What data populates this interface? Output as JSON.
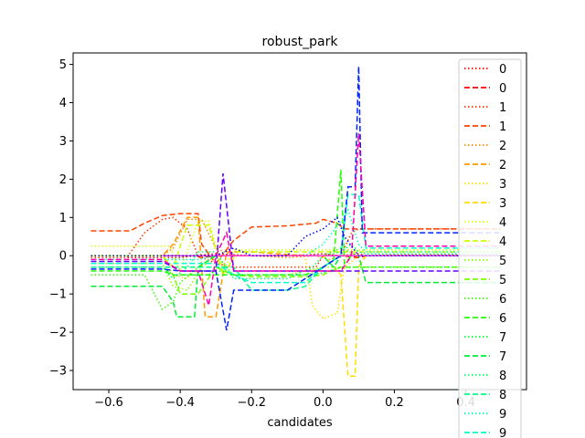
{
  "chart_data": {
    "type": "line",
    "title": "robust_park",
    "xlabel": "candidates",
    "ylabel": "",
    "xlim": [
      -0.7,
      0.57
    ],
    "ylim": [
      -3.5,
      5.3
    ],
    "xticks": [
      -0.6,
      -0.4,
      -0.2,
      0.0,
      0.2,
      0.4
    ],
    "xtick_labels": [
      "−0.6",
      "−0.4",
      "−0.2",
      "0.0",
      "0.2",
      "0.4"
    ],
    "yticks": [
      -3,
      -2,
      -1,
      0,
      1,
      2,
      3,
      4,
      5
    ],
    "ytick_labels": [
      "−3",
      "−2",
      "−1",
      "0",
      "1",
      "2",
      "3",
      "4",
      "5"
    ],
    "grid": false,
    "legend_position": "top-right",
    "series": [
      {
        "name": "0",
        "color": "#ff0000",
        "dash": "dotted",
        "x": [
          -0.65,
          -0.45,
          -0.4,
          -0.36,
          -0.3,
          -0.2,
          -0.05,
          0.0,
          0.05,
          0.1,
          0.12,
          0.2,
          0.4,
          0.5
        ],
        "y": [
          -0.05,
          -0.05,
          -0.05,
          0.0,
          0.05,
          0.0,
          0.02,
          0.05,
          0.0,
          0.05,
          0.0,
          0.02,
          0.02,
          0.02
        ]
      },
      {
        "name": "0",
        "color": "#ff0000",
        "dash": "dashed",
        "x": [
          -0.65,
          -0.45,
          -0.36,
          -0.34,
          -0.3,
          -0.1,
          0.0,
          0.05,
          0.1,
          0.12,
          0.5
        ],
        "y": [
          0.0,
          0.0,
          0.0,
          -0.05,
          0.0,
          0.0,
          0.0,
          0.0,
          -0.05,
          0.0,
          0.0
        ]
      },
      {
        "name": "1",
        "color": "#ff3300",
        "dash": "dotted",
        "x": [
          -0.65,
          -0.55,
          -0.5,
          -0.45,
          -0.42,
          -0.38,
          -0.35,
          -0.3,
          -0.25,
          -0.2,
          -0.1,
          -0.02,
          0.0,
          0.05,
          0.08,
          0.1,
          0.12,
          0.2,
          0.3,
          0.5
        ],
        "y": [
          -0.05,
          -0.05,
          0.6,
          0.95,
          1.0,
          0.7,
          0.0,
          -0.2,
          -0.3,
          -0.3,
          -0.3,
          -0.3,
          0.0,
          0.0,
          0.6,
          0.7,
          0.7,
          0.7,
          0.7,
          0.7
        ]
      },
      {
        "name": "1",
        "color": "#ff4400",
        "dash": "dashed",
        "x": [
          -0.65,
          -0.54,
          -0.5,
          -0.45,
          -0.4,
          -0.35,
          -0.34,
          -0.3,
          -0.25,
          -0.2,
          -0.1,
          -0.02,
          0.0,
          0.04,
          0.06,
          0.1,
          0.12,
          0.5
        ],
        "y": [
          0.65,
          0.65,
          0.85,
          1.05,
          1.1,
          1.1,
          0.3,
          -0.2,
          0.4,
          0.75,
          0.78,
          0.85,
          0.95,
          0.85,
          0.7,
          0.7,
          0.7,
          0.7
        ]
      },
      {
        "name": "2",
        "color": "#ff8800",
        "dash": "dotted",
        "x": [
          -0.65,
          -0.45,
          -0.42,
          -0.38,
          -0.34,
          -0.3,
          -0.25,
          -0.2,
          -0.1,
          -0.02,
          0.02,
          0.06,
          0.1,
          0.5
        ],
        "y": [
          0.0,
          0.0,
          0.2,
          0.95,
          0.95,
          0.2,
          0.0,
          0.0,
          -0.05,
          0.0,
          -0.1,
          0.0,
          0.0,
          0.0
        ]
      },
      {
        "name": "2",
        "color": "#ff9900",
        "dash": "dashed",
        "x": [
          -0.65,
          -0.45,
          -0.42,
          -0.38,
          -0.35,
          -0.33,
          -0.3,
          -0.27,
          -0.2,
          -0.05,
          0.0,
          0.06,
          0.1,
          0.5
        ],
        "y": [
          0.0,
          0.0,
          0.3,
          1.0,
          1.0,
          -1.6,
          -1.6,
          0.1,
          0.1,
          0.0,
          0.0,
          0.0,
          0.0,
          0.0
        ]
      },
      {
        "name": "3",
        "color": "#ffdd00",
        "dash": "dotted",
        "x": [
          -0.65,
          -0.45,
          -0.42,
          -0.38,
          -0.35,
          -0.3,
          -0.2,
          -0.05,
          -0.03,
          0.0,
          0.04,
          0.06,
          0.1,
          0.5
        ],
        "y": [
          0.0,
          0.0,
          -0.5,
          -0.6,
          -0.3,
          0.0,
          0.0,
          0.0,
          -1.3,
          -1.65,
          -1.5,
          -0.3,
          0.0,
          0.0
        ]
      },
      {
        "name": "3",
        "color": "#ffdd00",
        "dash": "dashed",
        "x": [
          -0.65,
          -0.45,
          -0.4,
          -0.35,
          -0.3,
          -0.2,
          -0.05,
          0.0,
          0.05,
          0.07,
          0.09,
          0.1,
          0.12,
          0.5
        ],
        "y": [
          0.0,
          0.0,
          0.0,
          0.0,
          0.0,
          0.0,
          0.0,
          0.0,
          -0.5,
          -3.15,
          -3.15,
          -0.3,
          0.0,
          0.0
        ]
      },
      {
        "name": "4",
        "color": "#ddff00",
        "dash": "dotted",
        "x": [
          -0.65,
          -0.45,
          -0.43,
          -0.4,
          -0.35,
          -0.32,
          -0.28,
          -0.25,
          -0.2,
          -0.1,
          -0.02,
          0.02,
          0.06,
          0.1,
          0.12,
          0.5
        ],
        "y": [
          0.25,
          0.25,
          0.25,
          -0.4,
          0.9,
          0.9,
          -0.4,
          0.15,
          0.15,
          0.15,
          0.15,
          0.15,
          0.15,
          0.15,
          0.15,
          0.15
        ]
      },
      {
        "name": "4",
        "color": "#ccff00",
        "dash": "dashed",
        "x": [
          -0.65,
          -0.45,
          -0.42,
          -0.38,
          -0.35,
          -0.32,
          -0.28,
          -0.24,
          -0.2,
          -0.1,
          0.0,
          0.05,
          0.08,
          0.1,
          0.12,
          0.5
        ],
        "y": [
          0.0,
          0.0,
          -0.3,
          0.8,
          0.8,
          0.8,
          -0.5,
          0.1,
          0.1,
          0.1,
          0.1,
          0.1,
          0.1,
          0.1,
          0.1,
          0.1
        ]
      },
      {
        "name": "5",
        "color": "#88ff00",
        "dash": "dotted",
        "x": [
          -0.65,
          -0.45,
          -0.42,
          -0.38,
          -0.34,
          -0.3,
          -0.25,
          -0.2,
          -0.1,
          0.0,
          0.05,
          0.1,
          0.12,
          0.5
        ],
        "y": [
          -0.2,
          -0.2,
          -0.8,
          -0.9,
          -0.3,
          0.0,
          -0.5,
          -0.5,
          -0.5,
          -0.3,
          -0.3,
          -0.3,
          -0.3,
          -0.3
        ]
      },
      {
        "name": "5",
        "color": "#77ff00",
        "dash": "dashed",
        "x": [
          -0.65,
          -0.45,
          -0.42,
          -0.4,
          -0.35,
          -0.3,
          -0.25,
          -0.2,
          -0.05,
          0.0,
          0.05,
          0.1,
          0.12,
          0.5
        ],
        "y": [
          -0.3,
          -0.3,
          -0.5,
          -1.0,
          -1.0,
          -0.3,
          -0.5,
          -0.55,
          -0.55,
          -0.5,
          -0.3,
          -0.3,
          -0.3,
          -0.3
        ]
      },
      {
        "name": "6",
        "color": "#33ff00",
        "dash": "dotted",
        "x": [
          -0.65,
          -0.5,
          -0.45,
          -0.42,
          -0.4,
          -0.35,
          -0.3,
          -0.25,
          -0.2,
          -0.05,
          0.0,
          0.05,
          0.1,
          0.12,
          0.5
        ],
        "y": [
          -0.5,
          -0.5,
          -1.4,
          -1.2,
          -0.7,
          -0.3,
          0.0,
          0.0,
          0.0,
          0.0,
          0.0,
          0.2,
          0.0,
          0.0,
          0.0
        ]
      },
      {
        "name": "6",
        "color": "#22ff00",
        "dash": "dashed",
        "x": [
          -0.65,
          -0.45,
          -0.42,
          -0.4,
          -0.38,
          -0.35,
          -0.3,
          -0.25,
          -0.2,
          -0.05,
          0.0,
          0.03,
          0.05,
          0.06,
          0.08,
          0.1,
          0.12,
          0.5
        ],
        "y": [
          -0.4,
          -0.4,
          -0.5,
          -0.5,
          -0.5,
          -0.5,
          -0.5,
          -0.5,
          -0.5,
          -0.5,
          -0.3,
          -0.1,
          2.25,
          -0.2,
          0.0,
          0.0,
          0.0,
          0.0
        ]
      },
      {
        "name": "7",
        "color": "#00ff22",
        "dash": "dotted",
        "x": [
          -0.65,
          -0.45,
          -0.42,
          -0.4,
          -0.38,
          -0.35,
          -0.32,
          -0.3,
          -0.28,
          -0.25,
          -0.2,
          -0.05,
          0.0,
          0.05,
          0.08,
          0.1,
          0.5
        ],
        "y": [
          -0.3,
          -0.3,
          -0.5,
          -0.5,
          -0.5,
          -0.5,
          -0.5,
          -0.4,
          -0.4,
          -0.5,
          -0.5,
          -0.5,
          -0.45,
          -0.3,
          -0.3,
          -0.3,
          -0.3
        ]
      },
      {
        "name": "7",
        "color": "#00ee33",
        "dash": "dashed",
        "x": [
          -0.65,
          -0.45,
          -0.42,
          -0.41,
          -0.36,
          -0.35,
          -0.3,
          -0.25,
          -0.2,
          -0.1,
          0.0,
          0.03,
          0.05,
          0.08,
          0.1,
          0.12,
          0.5
        ],
        "y": [
          -0.8,
          -0.8,
          -1.2,
          -1.6,
          -1.6,
          -0.3,
          0.0,
          0.0,
          0.0,
          0.0,
          0.0,
          -0.3,
          0.0,
          0.0,
          0.0,
          -0.7,
          -0.7
        ]
      },
      {
        "name": "8",
        "color": "#00ff66",
        "dash": "dotted",
        "x": [
          -0.65,
          -0.45,
          -0.42,
          -0.38,
          -0.35,
          -0.3,
          -0.25,
          -0.2,
          -0.1,
          -0.03,
          0.0,
          0.05,
          0.08,
          0.1,
          0.12,
          0.5
        ],
        "y": [
          -0.3,
          -0.3,
          -0.6,
          -0.3,
          0.1,
          0.1,
          -0.6,
          -0.6,
          -0.6,
          -0.3,
          0.0,
          0.1,
          0.3,
          0.1,
          0.05,
          0.05
        ]
      },
      {
        "name": "8",
        "color": "#00ff88",
        "dash": "dashed",
        "x": [
          -0.65,
          -0.45,
          -0.42,
          -0.38,
          -0.35,
          -0.32,
          -0.28,
          -0.25,
          -0.2,
          -0.1,
          -0.05,
          0.0,
          0.05,
          0.08,
          0.1,
          0.12,
          0.5
        ],
        "y": [
          -0.3,
          -0.3,
          -0.3,
          -0.3,
          -0.3,
          -0.3,
          -0.3,
          -0.3,
          -0.9,
          -0.9,
          -0.8,
          -0.3,
          0.0,
          0.0,
          0.0,
          0.0,
          0.0
        ]
      },
      {
        "name": "9",
        "color": "#00ffbb",
        "dash": "dotted",
        "x": [
          -0.65,
          -0.45,
          -0.4,
          -0.35,
          -0.3,
          -0.25,
          -0.2,
          -0.1,
          -0.05,
          0.0,
          0.05,
          0.07,
          0.1,
          0.12,
          0.5
        ],
        "y": [
          -0.1,
          -0.1,
          -0.1,
          -0.1,
          0.0,
          0.0,
          0.0,
          0.0,
          0.0,
          0.3,
          0.9,
          1.2,
          0.3,
          0.1,
          0.1
        ]
      },
      {
        "name": "9",
        "color": "#00ffcc",
        "dash": "dashed",
        "x": [
          -0.65,
          -0.45,
          -0.4,
          -0.35,
          -0.3,
          -0.25,
          -0.2,
          -0.1,
          -0.05,
          0.0,
          0.05,
          0.07,
          0.1,
          0.12,
          0.5
        ],
        "y": [
          -0.2,
          -0.2,
          -0.2,
          -0.2,
          -0.2,
          -0.5,
          -0.7,
          -0.7,
          -0.7,
          -0.3,
          0.0,
          1.6,
          1.6,
          0.2,
          0.2
        ]
      },
      {
        "name": "",
        "color": "#0022ff",
        "dash": "dashed",
        "x": [
          -0.65,
          -0.45,
          -0.4,
          -0.35,
          -0.3,
          -0.27,
          -0.25,
          -0.2,
          -0.1,
          -0.05,
          0.0,
          0.05,
          0.07,
          0.09,
          0.1,
          0.11,
          0.12,
          0.5
        ],
        "y": [
          -0.35,
          -0.35,
          -0.4,
          -0.4,
          -0.4,
          -1.95,
          -0.9,
          -0.9,
          -0.9,
          -0.6,
          -0.3,
          0.0,
          1.8,
          1.8,
          4.95,
          0.6,
          0.6,
          0.6
        ]
      },
      {
        "name": "",
        "color": "#6600ff",
        "dash": "dashed",
        "x": [
          -0.65,
          -0.45,
          -0.4,
          -0.35,
          -0.3,
          -0.28,
          -0.25,
          -0.2,
          -0.1,
          -0.05,
          0.0,
          0.05,
          0.08,
          0.1,
          0.12,
          0.5
        ],
        "y": [
          -0.15,
          -0.15,
          -0.4,
          -0.4,
          -0.4,
          2.15,
          -0.4,
          -0.4,
          -0.4,
          -0.4,
          -0.4,
          -0.4,
          -0.4,
          -0.4,
          -0.4,
          -0.4
        ]
      },
      {
        "name": "",
        "color": "#ff00aa",
        "dash": "dashed",
        "x": [
          -0.65,
          -0.45,
          -0.4,
          -0.35,
          -0.32,
          -0.3,
          -0.27,
          -0.25,
          -0.2,
          -0.1,
          -0.05,
          0.0,
          0.05,
          0.08,
          0.1,
          0.12,
          0.5
        ],
        "y": [
          -0.1,
          -0.1,
          -0.4,
          -0.4,
          -1.3,
          0.0,
          0.6,
          -0.4,
          -0.4,
          -0.4,
          -0.4,
          -0.4,
          -0.4,
          0.0,
          3.2,
          0.25,
          0.25
        ]
      },
      {
        "name": "",
        "color": "#ff33cc",
        "dash": "solid",
        "x": [
          -0.45,
          0.5
        ],
        "y": [
          0.0,
          0.0
        ]
      },
      {
        "name": "",
        "color": "#0000ff",
        "dash": "dotted",
        "x": [
          -0.65,
          -0.45,
          -0.42,
          -0.4,
          -0.35,
          -0.3,
          -0.25,
          -0.2,
          -0.1,
          -0.05,
          0.0,
          0.04,
          0.06,
          0.1,
          0.12,
          0.5
        ],
        "y": [
          0.0,
          0.0,
          0.0,
          0.0,
          0.0,
          0.0,
          0.2,
          0.0,
          0.0,
          0.5,
          0.7,
          1.0,
          0.5,
          0.0,
          0.0,
          0.0
        ]
      }
    ],
    "legend_entries": [
      {
        "label": "0",
        "color": "#ff0000",
        "dash": "dotted"
      },
      {
        "label": "0",
        "color": "#ff0000",
        "dash": "dashed"
      },
      {
        "label": "1",
        "color": "#ff3300",
        "dash": "dotted"
      },
      {
        "label": "1",
        "color": "#ff4400",
        "dash": "dashed"
      },
      {
        "label": "2",
        "color": "#ff8800",
        "dash": "dotted"
      },
      {
        "label": "2",
        "color": "#ff9900",
        "dash": "dashed"
      },
      {
        "label": "3",
        "color": "#ffdd00",
        "dash": "dotted"
      },
      {
        "label": "3",
        "color": "#ffdd00",
        "dash": "dashed"
      },
      {
        "label": "4",
        "color": "#ddff00",
        "dash": "dotted"
      },
      {
        "label": "4",
        "color": "#ccff00",
        "dash": "dashed"
      },
      {
        "label": "5",
        "color": "#88ff00",
        "dash": "dotted"
      },
      {
        "label": "5",
        "color": "#77ff00",
        "dash": "dashed"
      },
      {
        "label": "6",
        "color": "#33ff00",
        "dash": "dotted"
      },
      {
        "label": "6",
        "color": "#22ff00",
        "dash": "dashed"
      },
      {
        "label": "7",
        "color": "#00ff22",
        "dash": "dotted"
      },
      {
        "label": "7",
        "color": "#00ee33",
        "dash": "dashed"
      },
      {
        "label": "8",
        "color": "#00ff66",
        "dash": "dotted"
      },
      {
        "label": "8",
        "color": "#00ff88",
        "dash": "dashed"
      },
      {
        "label": "9",
        "color": "#00ffbb",
        "dash": "dotted"
      },
      {
        "label": "9",
        "color": "#00ffcc",
        "dash": "dashed"
      }
    ]
  }
}
